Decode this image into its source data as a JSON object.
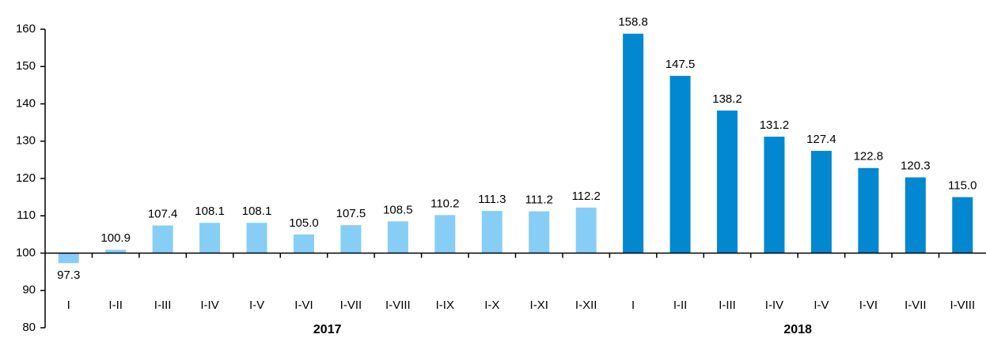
{
  "chart_data": {
    "type": "bar",
    "categories": [
      "I",
      "I-II",
      "I-III",
      "I-IV",
      "I-V",
      "I-VI",
      "I-VII",
      "I-VIII",
      "I-IX",
      "I-X",
      "I-XI",
      "I-XII",
      "I",
      "I-II",
      "I-III",
      "I-IV",
      "I-V",
      "I-VI",
      "I-VII",
      "I-VIII"
    ],
    "series": [
      {
        "name": "2017",
        "color": "#87cef7",
        "values": [
          97.3,
          100.9,
          107.4,
          108.1,
          108.1,
          105.0,
          107.5,
          108.5,
          110.2,
          111.3,
          111.2,
          112.2,
          null,
          null,
          null,
          null,
          null,
          null,
          null,
          null
        ],
        "value_labels": [
          "97.3",
          "100.9",
          "107.4",
          "108.1",
          "108.1",
          "105.0",
          "107.5",
          "108.5",
          "110.2",
          "111.3",
          "111.2",
          "112.2",
          null,
          null,
          null,
          null,
          null,
          null,
          null,
          null
        ]
      },
      {
        "name": "2018",
        "color": "#0288d1",
        "values": [
          null,
          null,
          null,
          null,
          null,
          null,
          null,
          null,
          null,
          null,
          null,
          null,
          158.8,
          147.5,
          138.2,
          131.2,
          127.4,
          122.8,
          120.3,
          115.0
        ],
        "value_labels": [
          null,
          null,
          null,
          null,
          null,
          null,
          null,
          null,
          null,
          null,
          null,
          null,
          "158.8",
          "147.5",
          "138.2",
          "131.2",
          "127.4",
          "122.8",
          "120.3",
          "115.0"
        ]
      }
    ],
    "baseline": 100,
    "ylim": [
      80,
      160
    ],
    "yticks": [
      80,
      90,
      100,
      110,
      120,
      130,
      140,
      150,
      160
    ]
  }
}
